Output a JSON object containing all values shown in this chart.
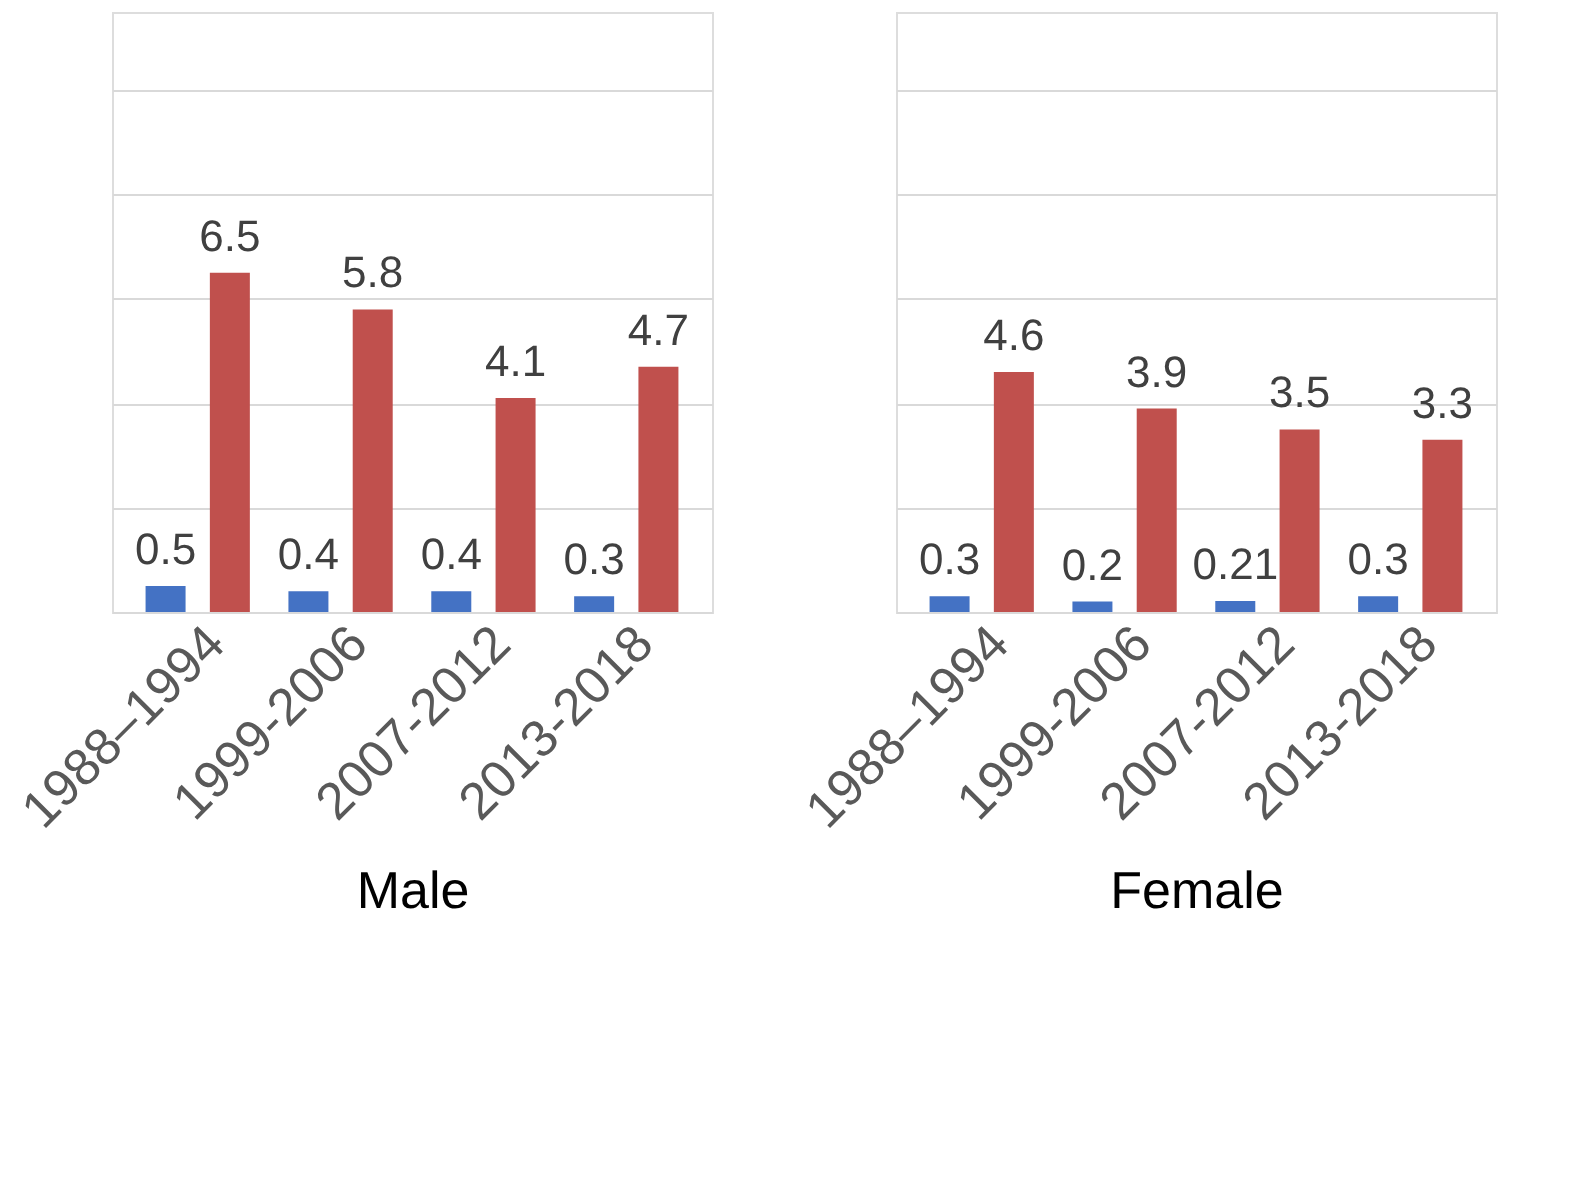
{
  "chart_data": [
    {
      "type": "bar",
      "xlabel": "Male",
      "categories": [
        "1988–1994",
        "1999-2006",
        "2007-2012",
        "2013-2018"
      ],
      "series": [
        {
          "color": "#4472c4",
          "values": [
            0.5,
            0.4,
            0.4,
            0.3
          ]
        },
        {
          "color": "#c0504d",
          "values": [
            6.5,
            5.8,
            4.1,
            4.7
          ]
        }
      ],
      "ylim": [
        0,
        11.5
      ],
      "yticks": [
        {
          "value": 0,
          "label": null
        },
        {
          "value": 2,
          "label": null
        },
        {
          "value": 4,
          "label": null
        },
        {
          "value": 6,
          "label": null
        },
        {
          "value": 8,
          "label": null
        },
        {
          "value": 10,
          "label": null
        }
      ],
      "grid": "y",
      "tick_labels": "x",
      "data_labels": true
    },
    {
      "type": "bar",
      "xlabel": "Female",
      "categories": [
        "1988–1994",
        "1999-2006",
        "2007-2012",
        "2013-2018"
      ],
      "series": [
        {
          "color": "#4472c4",
          "values": [
            0.3,
            0.2,
            0.21,
            0.3
          ]
        },
        {
          "color": "#c0504d",
          "values": [
            4.6,
            3.9,
            3.5,
            3.3
          ]
        }
      ],
      "ylim": [
        0,
        11.5
      ],
      "yticks": [
        {
          "value": 0,
          "label": null
        },
        {
          "value": 2,
          "label": null
        },
        {
          "value": 4,
          "label": null
        },
        {
          "value": 6,
          "label": null
        },
        {
          "value": 8,
          "label": null
        },
        {
          "value": 10,
          "label": null
        }
      ],
      "grid": "y",
      "tick_labels": "x",
      "data_labels": true
    }
  ]
}
